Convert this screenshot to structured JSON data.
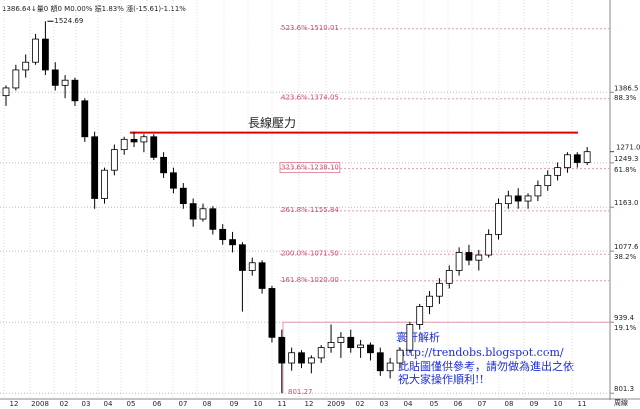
{
  "chart_data": {
    "type": "candlestick",
    "header": "1386.64↓量0 額0 M0.00% 振1.83% 漲(-15.61)-1.11%",
    "period": "周線",
    "x_labels": [
      "12",
      "2008",
      "02",
      "03",
      "04",
      "05",
      "06",
      "07",
      "08",
      "09",
      "10",
      "11",
      "12",
      "2009",
      "02",
      "03",
      "04",
      "05",
      "06",
      "07",
      "08",
      "09",
      "10",
      "11"
    ],
    "ylim": [
      792,
      1566
    ],
    "yticks": [
      1386.5,
      1249.3,
      {
        "value": 1163,
        "label": "1163.0"
      },
      1077.6,
      939.4,
      801.3
    ],
    "percent_labels": [
      "88.3%",
      "61.8%",
      "38.2%",
      "19.1%"
    ],
    "last_price": {
      "value": 1271,
      "label": "1271.0"
    },
    "high_label": 1524.69,
    "low_label": 801.27,
    "fib_levels": [
      {
        "value": 1510.01,
        "label": "523.6% 1510.01"
      },
      {
        "value": 1374.05,
        "label": "423.6% 1374.05"
      },
      {
        "value": 1238.1,
        "label": "323.6% 1238.10"
      },
      {
        "value": 1155.84,
        "label": "261.8% 1155.84"
      },
      {
        "value": 1071.5,
        "label": "200.0% 1071.50"
      },
      {
        "value": 1020.0,
        "label": "161.8% 1020.00"
      }
    ],
    "resistance": {
      "label": "長線壓力",
      "value": 1308,
      "color": "#e00000"
    },
    "up_color": "#ffffff",
    "down_color": "#000000",
    "open": [
      1380,
      1395,
      1430,
      1445,
      1490,
      1430,
      1400,
      1410,
      1370,
      1300,
      1180,
      1235,
      1275,
      1295,
      1290,
      1300,
      1260,
      1230,
      1200,
      1170,
      1140,
      1160,
      1120,
      1100,
      1090,
      1040,
      1055,
      1005,
      910,
      860,
      880,
      860,
      870,
      890,
      900,
      910,
      890,
      895,
      880,
      845,
      860,
      885,
      935,
      970,
      990,
      1015,
      1040,
      1075,
      1060,
      1070,
      1110,
      1170,
      1185,
      1175,
      1185,
      1205,
      1225,
      1240,
      1265,
      1250
    ],
    "high": [
      1400,
      1440,
      1460,
      1500,
      1524.69,
      1445,
      1420,
      1415,
      1375,
      1310,
      1240,
      1285,
      1300,
      1310,
      1305,
      1305,
      1270,
      1240,
      1210,
      1180,
      1170,
      1165,
      1130,
      1115,
      1095,
      1065,
      1060,
      1010,
      925,
      890,
      885,
      875,
      895,
      935,
      920,
      925,
      905,
      900,
      890,
      870,
      890,
      940,
      975,
      1000,
      1025,
      1050,
      1085,
      1090,
      1080,
      1120,
      1180,
      1195,
      1200,
      1190,
      1215,
      1235,
      1250,
      1270,
      1270,
      1280
    ],
    "low": [
      1360,
      1390,
      1415,
      1440,
      1420,
      1390,
      1375,
      1360,
      1290,
      1160,
      1170,
      1225,
      1265,
      1280,
      1270,
      1255,
      1220,
      1190,
      1160,
      1125,
      1135,
      1110,
      1090,
      1075,
      960,
      1030,
      995,
      900,
      801.27,
      845,
      850,
      840,
      860,
      880,
      870,
      880,
      870,
      865,
      835,
      830,
      850,
      880,
      925,
      955,
      975,
      1005,
      1030,
      1050,
      1040,
      1065,
      1100,
      1160,
      1160,
      1160,
      1175,
      1195,
      1215,
      1230,
      1240,
      1245
    ],
    "close": [
      1395,
      1430,
      1445,
      1490,
      1430,
      1400,
      1410,
      1370,
      1300,
      1180,
      1235,
      1275,
      1295,
      1290,
      1300,
      1260,
      1230,
      1200,
      1170,
      1140,
      1160,
      1120,
      1100,
      1090,
      1040,
      1055,
      1005,
      910,
      860,
      880,
      860,
      870,
      890,
      900,
      910,
      890,
      895,
      880,
      845,
      860,
      885,
      935,
      970,
      990,
      1015,
      1040,
      1075,
      1060,
      1070,
      1110,
      1170,
      1185,
      1175,
      1185,
      1205,
      1225,
      1240,
      1265,
      1250,
      1271
    ]
  },
  "note_box": {
    "lines": [
      "寰軒解析",
      "http://trendobs.blogspot.com/",
      "此貼圖僅供參考，請勿做為進出之依",
      "祝大家操作順利!!"
    ]
  }
}
